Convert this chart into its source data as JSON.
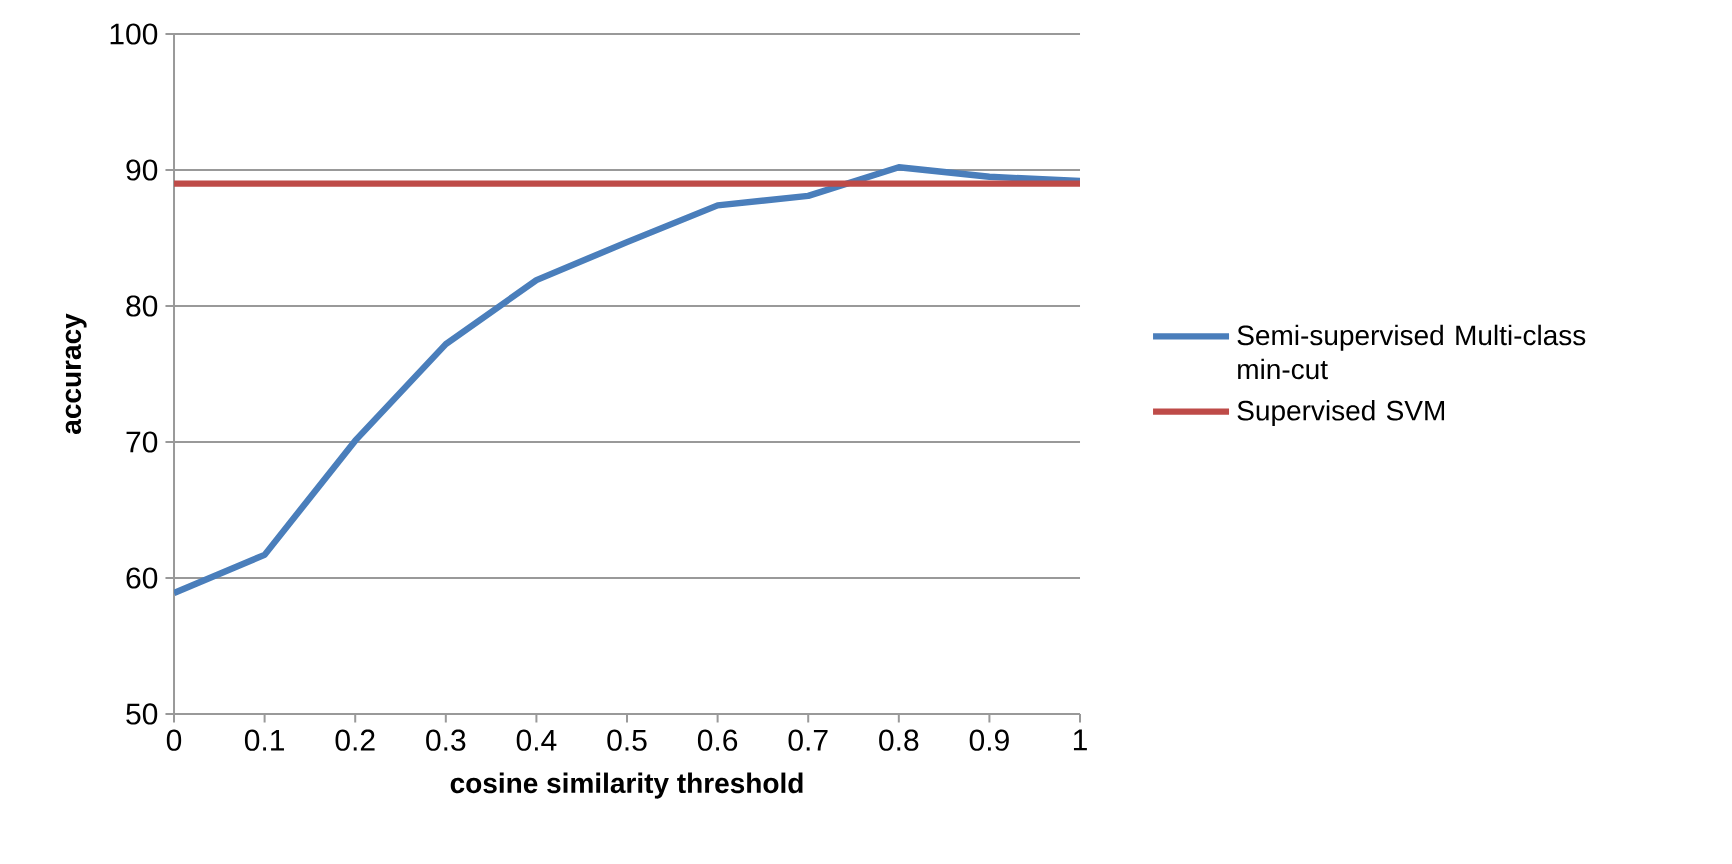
{
  "chart_data": {
    "type": "line",
    "xlabel": "cosine similarity threshold",
    "ylabel": "accuracy",
    "x": [
      0,
      0.1,
      0.2,
      0.3,
      0.4,
      0.5,
      0.6,
      0.7,
      0.8,
      0.9,
      1
    ],
    "series": [
      {
        "name": "Semi-supervised Multi-class min-cut",
        "color": "#4a7ebb",
        "values": [
          58.9,
          61.7,
          70.1,
          77.2,
          81.9,
          84.7,
          87.4,
          88.1,
          90.2,
          89.5,
          89.2
        ]
      },
      {
        "name": "Supervised SVM",
        "color": "#be4b48",
        "values": [
          89,
          89,
          89,
          89,
          89,
          89,
          89,
          89,
          89,
          89,
          89
        ]
      }
    ],
    "xlim": [
      0,
      1
    ],
    "ylim": [
      50,
      100
    ],
    "xticks": [
      0,
      0.1,
      0.2,
      0.3,
      0.4,
      0.5,
      0.6,
      0.7,
      0.8,
      0.9,
      1
    ],
    "yticks": [
      50,
      60,
      70,
      80,
      90,
      100
    ],
    "grid": "y",
    "legend": "right",
    "marker": "none",
    "line_style": "solid"
  }
}
